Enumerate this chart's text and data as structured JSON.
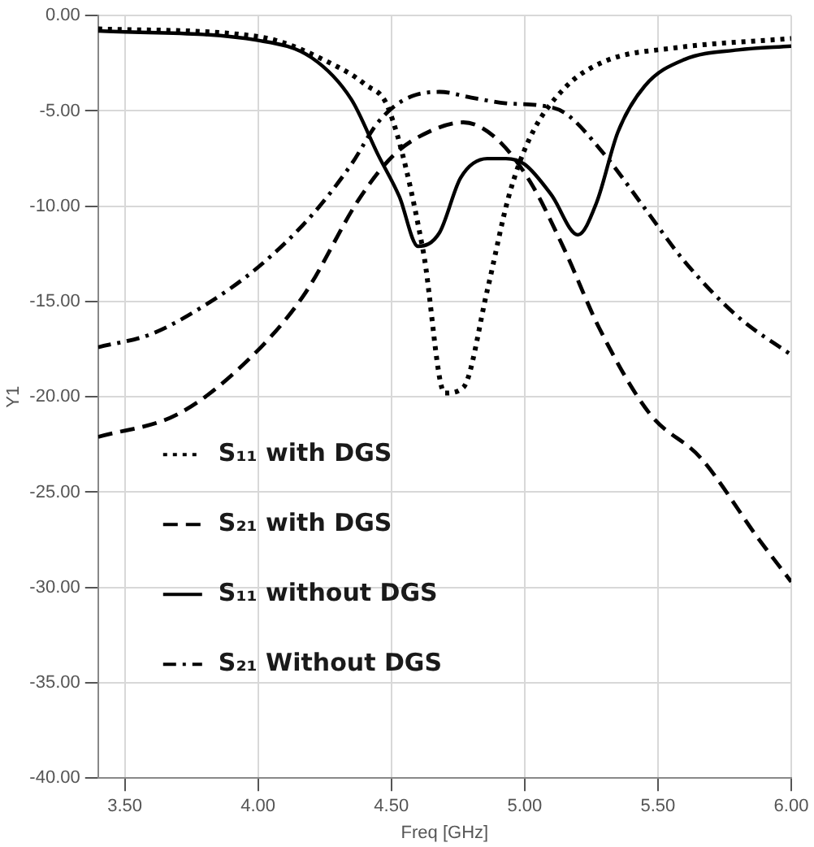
{
  "chart_data": {
    "type": "line",
    "xlabel": "Freq [GHz]",
    "ylabel": "Y1",
    "xlim": [
      3.4,
      6.0
    ],
    "xticks": [
      {
        "value": 3.5,
        "label": "3.50"
      },
      {
        "value": 4.0,
        "label": "4.00"
      },
      {
        "value": 4.5,
        "label": "4.50"
      },
      {
        "value": 5.0,
        "label": "5.00"
      },
      {
        "value": 5.5,
        "label": "5.50"
      },
      {
        "value": 6.0,
        "label": "6.00"
      }
    ],
    "ylim": [
      -40,
      0
    ],
    "yticks": [
      {
        "value": -40,
        "label": "-40.00"
      },
      {
        "value": -35,
        "label": "-35.00"
      },
      {
        "value": -30,
        "label": "-30.00"
      },
      {
        "value": -25,
        "label": "-25.00"
      },
      {
        "value": -20,
        "label": "-20.00"
      },
      {
        "value": -15,
        "label": "-15.00"
      },
      {
        "value": -10,
        "label": "-10.00"
      },
      {
        "value": -5,
        "label": "-5.00"
      },
      {
        "value": 0,
        "label": "0.00"
      }
    ],
    "grid": true,
    "legend": "bottom left",
    "marker": "none",
    "series": [
      {
        "name": "S₁₁ with DGS",
        "color": "#000000",
        "line_style": "dotted",
        "x": [
          3.4,
          4.0,
          4.3,
          4.4,
          4.49,
          4.62,
          4.7,
          4.77,
          4.86,
          4.94,
          5.02,
          5.15,
          5.3,
          5.56,
          6.0
        ],
        "values": [
          -0.7,
          -1.1,
          -2.7,
          -3.6,
          -4.9,
          -12.4,
          -19.8,
          -19.5,
          -14.4,
          -9.5,
          -6.4,
          -3.8,
          -2.4,
          -1.7,
          -1.2
        ]
      },
      {
        "name": "S₂₁ with DGS",
        "color": "#000000",
        "line_style": "dashed",
        "x": [
          3.4,
          3.7,
          3.96,
          4.17,
          4.38,
          4.51,
          4.64,
          4.77,
          4.89,
          5.02,
          5.15,
          5.28,
          5.47,
          5.66,
          5.88,
          6.0
        ],
        "values": [
          -22.1,
          -20.9,
          -18.1,
          -14.7,
          -9.6,
          -7.3,
          -6.1,
          -5.6,
          -6.4,
          -8.7,
          -12.3,
          -16.4,
          -20.9,
          -23.2,
          -27.5,
          -29.7
        ]
      },
      {
        "name": "S₁₁ without DGS",
        "color": "#000000",
        "line_style": "solid",
        "x": [
          3.4,
          4.0,
          4.2,
          4.35,
          4.45,
          4.53,
          4.6,
          4.68,
          4.76,
          4.86,
          4.93,
          5.0,
          5.1,
          5.2,
          5.27,
          5.35,
          5.45,
          5.6,
          5.8,
          6.0
        ],
        "values": [
          -0.8,
          -1.3,
          -2.2,
          -4.4,
          -7.3,
          -9.5,
          -12.1,
          -11.4,
          -8.5,
          -7.5,
          -7.5,
          -7.8,
          -9.4,
          -11.5,
          -9.8,
          -6.1,
          -3.7,
          -2.3,
          -1.8,
          -1.6
        ]
      },
      {
        "name": "S₂₁ Without DGS",
        "color": "#000000",
        "line_style": "dashdot",
        "x": [
          3.4,
          3.6,
          3.8,
          4.0,
          4.2,
          4.35,
          4.45,
          4.55,
          4.68,
          4.8,
          4.93,
          5.05,
          5.15,
          5.3,
          5.45,
          5.6,
          5.8,
          6.0
        ],
        "values": [
          -17.4,
          -16.7,
          -15.2,
          -13.2,
          -10.5,
          -7.8,
          -5.6,
          -4.4,
          -4.0,
          -4.3,
          -4.6,
          -4.7,
          -5.1,
          -7.3,
          -10.1,
          -12.9,
          -15.8,
          -17.8
        ]
      }
    ]
  }
}
